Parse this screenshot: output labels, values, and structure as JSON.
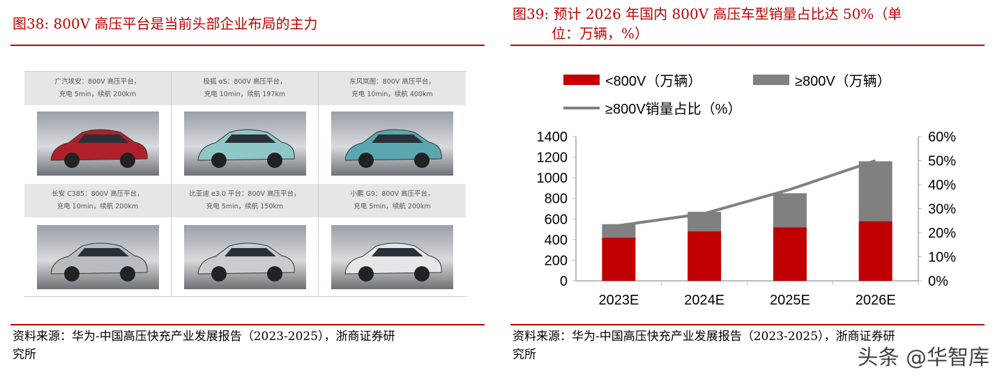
{
  "left": {
    "title": "图38:  800V 高压平台是当前头部企业布局的主力",
    "cars": [
      {
        "line1": "广汽埃安：800V 高压平台，",
        "line2": "充电 5min，续航 200km",
        "color": "#b0202a"
      },
      {
        "line1": "极狐 αS：800V 高压平台，",
        "line2": "充电 10min，续航 197km",
        "color": "#8fc7c8"
      },
      {
        "line1": "东风岚图：800V 高压平台，",
        "line2": "充电 10min，续航 400km",
        "color": "#5aa7b0"
      },
      {
        "line1": "长安 C385：800V 高压平台，",
        "line2": "充电 10min，续航 200km",
        "color": "#b8bcc0"
      },
      {
        "line1": "比亚迪 e3.0 平台：800V 高压平台，",
        "line2": "充电 5min，续航 150km",
        "color": "#c9cdd0"
      },
      {
        "line1": "小鹏 G9：800V 高压平台，",
        "line2": "充电 5min，续航 200km",
        "color": "#e4e6e8"
      }
    ],
    "source_line1": "资料来源：华为-中国高压快充产业发展报告（2023-2025），浙商证券研",
    "source_line2": "究所"
  },
  "right": {
    "title_line1": "图39:  预计 2026 年国内 800V 高压车型销量占比达 50%（单",
    "title_line2": "位：万辆，%）",
    "source_line1": "资料来源：华为-中国高压快充产业发展报告（2023-2025），浙商证券研",
    "source_line2": "究所"
  },
  "watermark": "头条 @华智库",
  "chart_data": {
    "type": "bar",
    "categories": [
      "2023E",
      "2024E",
      "2025E",
      "2026E"
    ],
    "series": [
      {
        "name": "<800V（万辆）",
        "kind": "stacked-bar",
        "axis": "left",
        "color": "#c00000",
        "values": [
          420,
          480,
          520,
          580
        ]
      },
      {
        "name": "≥800V（万辆）",
        "kind": "stacked-bar",
        "axis": "left",
        "color": "#808080",
        "values": [
          130,
          190,
          330,
          580
        ]
      },
      {
        "name": "≥800V销量占比（%）",
        "kind": "line",
        "axis": "right",
        "color": "#808080",
        "values": [
          23,
          28,
          38,
          50
        ]
      }
    ],
    "ylim": [
      0,
      1400
    ],
    "yticks": [
      "0",
      "200",
      "400",
      "600",
      "800",
      "1000",
      "1200",
      "1400"
    ],
    "y2lim": [
      0,
      60
    ],
    "y2ticks": [
      "0%",
      "10%",
      "20%",
      "30%",
      "40%",
      "50%",
      "60%"
    ],
    "legend": "top"
  }
}
